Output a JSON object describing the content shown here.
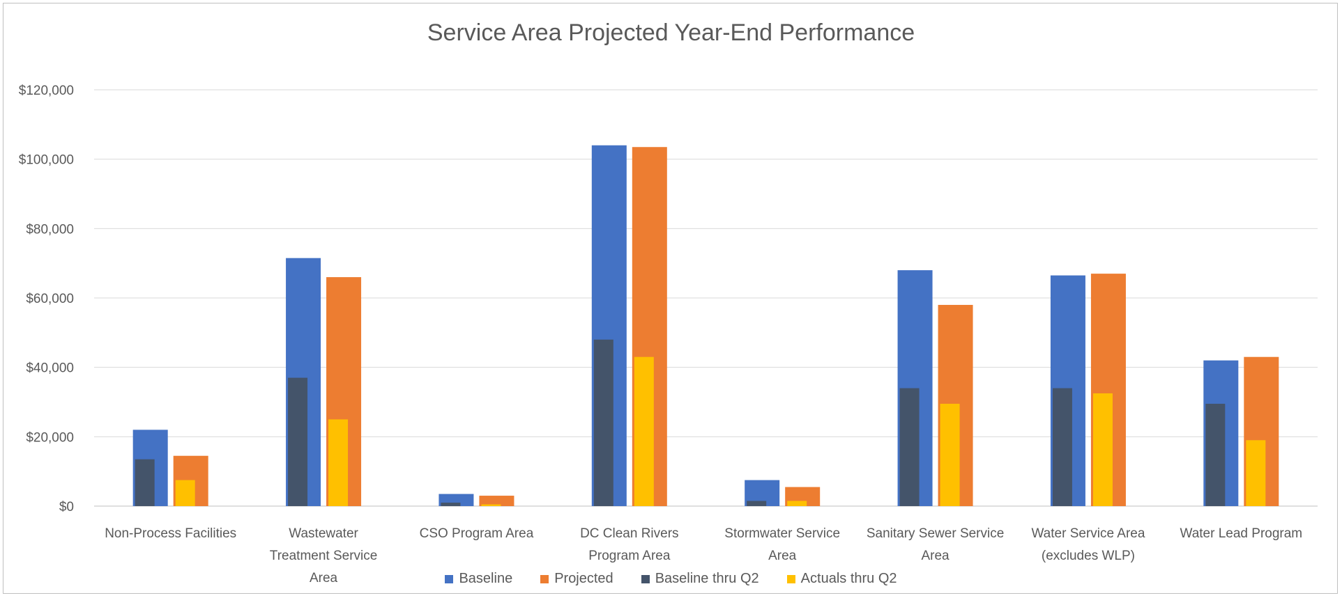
{
  "chart_data": {
    "type": "bar",
    "title": "Service Area Projected Year-End Performance",
    "xlabel": "",
    "ylabel": "",
    "ylim": [
      0,
      120000
    ],
    "yticks": [
      0,
      20000,
      40000,
      60000,
      80000,
      100000,
      120000
    ],
    "ytick_labels": [
      "$0",
      "$20,000",
      "$40,000",
      "$60,000",
      "$80,000",
      "$100,000",
      "$120,000"
    ],
    "grid": true,
    "legend_position": "bottom",
    "categories": [
      [
        "Non-Process Facilities"
      ],
      [
        "Wastewater",
        "Treatment Service",
        "Area"
      ],
      [
        "CSO Program Area"
      ],
      [
        "DC Clean Rivers",
        "Program Area"
      ],
      [
        "Stormwater Service",
        "Area"
      ],
      [
        "Sanitary Sewer Service",
        "Area"
      ],
      [
        "Water Service Area",
        "(excludes WLP)"
      ],
      [
        "Water Lead Program"
      ]
    ],
    "series": [
      {
        "name": "Baseline",
        "color": "#4472C4",
        "values": [
          22000,
          71500,
          3500,
          104000,
          7500,
          68000,
          66500,
          42000
        ]
      },
      {
        "name": "Projected",
        "color": "#ED7D31",
        "values": [
          14500,
          66000,
          3000,
          103500,
          5500,
          58000,
          67000,
          43000
        ]
      },
      {
        "name": "Baseline thru Q2",
        "color": "#44546A",
        "values": [
          13500,
          37000,
          1000,
          48000,
          1500,
          34000,
          34000,
          29500
        ]
      },
      {
        "name": "Actuals thru Q2",
        "color": "#FFC000",
        "values": [
          7500,
          25000,
          500,
          43000,
          1500,
          29500,
          32500,
          19000
        ]
      }
    ],
    "overlay": "Baseline thru Q2 drawn inside Baseline bar; Actuals thru Q2 drawn inside Projected bar"
  }
}
